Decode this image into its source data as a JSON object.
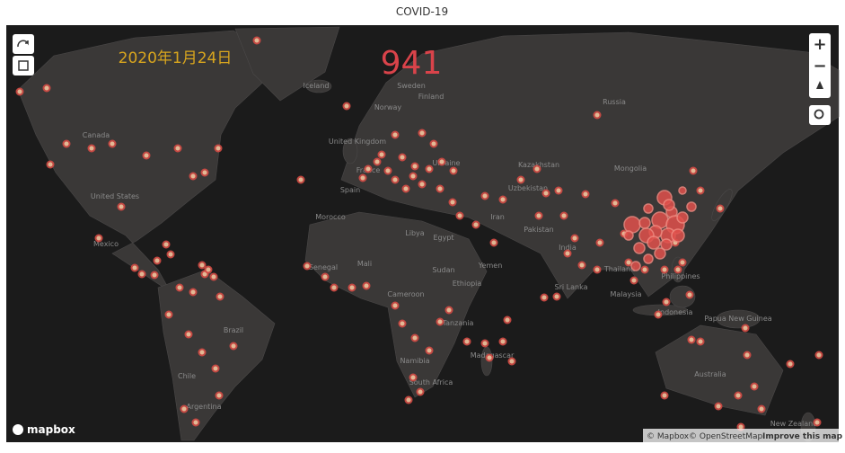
{
  "title": "COVID-19",
  "map": {
    "date": "2020年1月24日",
    "count": 941,
    "labels": [
      "Russia",
      "Canada",
      "United States",
      "Mexico",
      "Brazil",
      "Chile",
      "Argentina",
      "Iceland",
      "Sweden",
      "Finland",
      "Norway",
      "United Kingdom",
      "France",
      "Spain",
      "Ukraine",
      "Kazakhstan",
      "Mongolia",
      "Uzbekistan",
      "Iran",
      "Pakistan",
      "India",
      "Thailand",
      "Philippines",
      "Malaysia",
      "Indonesia",
      "Sri Lanka",
      "Papua New Guinea",
      "Australia",
      "New Zealand",
      "Morocco",
      "Libya",
      "Egypt",
      "Senegal",
      "Mali",
      "Sudan",
      "Ethiopia",
      "Yemen",
      "Cameroon",
      "Tanzania",
      "Namibia",
      "Madagascar",
      "South Africa"
    ]
  },
  "controls": {
    "zoom_in": "+",
    "zoom_out": "−"
  },
  "attribution": {
    "logo": "mapbox",
    "mapbox": "© Mapbox",
    "osm": "© OpenStreetMap",
    "improve": "Improve this map"
  }
}
